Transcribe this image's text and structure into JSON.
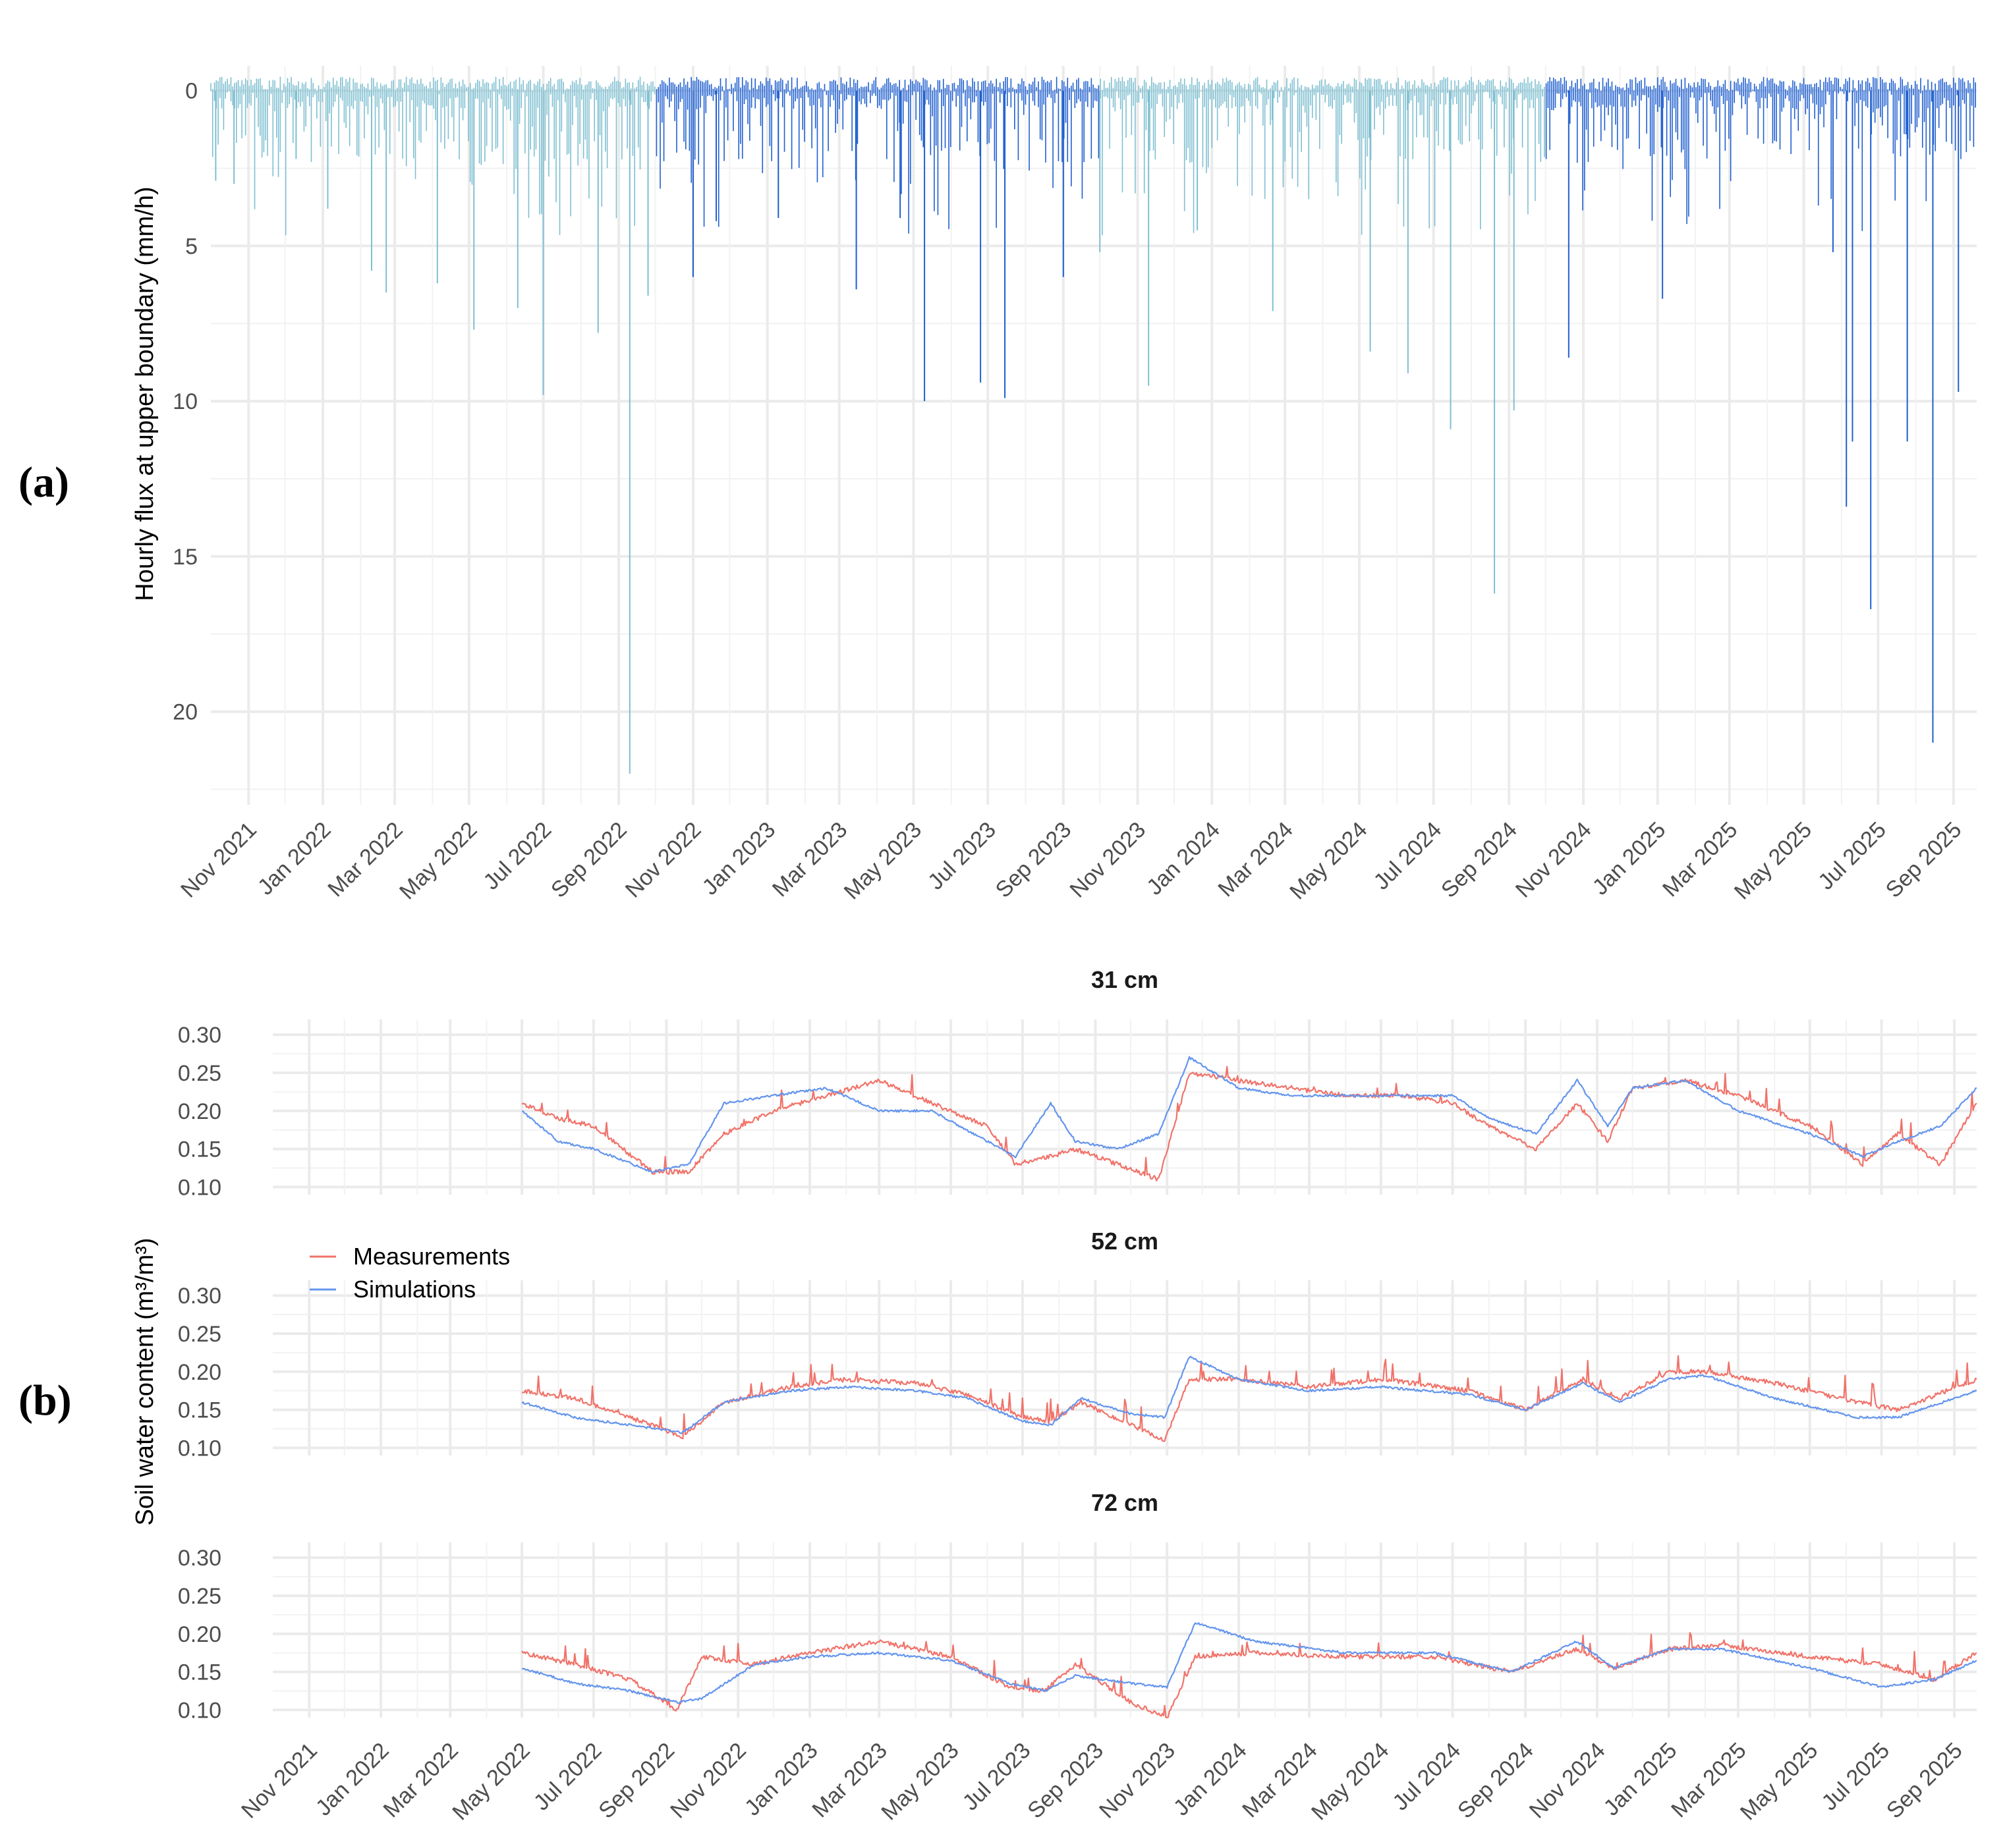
{
  "panel_labels": {
    "a": "(a)",
    "b": "(b)"
  },
  "colors": {
    "flux_light": "#7fbfd1",
    "flux_dark": "#1f5fcf",
    "measurements": "#f0736a",
    "simulations": "#6495ed",
    "grid": "#ebebeb"
  },
  "chart_data": [
    {
      "type": "bar",
      "ylabel": "Hourly flux at upper boundary (mm/h)",
      "y_reversed": true,
      "ylim": [
        -0.8,
        23
      ],
      "yticks": [
        "0",
        "5",
        "10",
        "15",
        "20"
      ],
      "xlim": [
        "2021-10-01",
        "2025-09-20"
      ],
      "xtick_labels": [
        "Nov 2021",
        "Jan 2022",
        "Mar 2022",
        "May 2022",
        "Jul 2022",
        "Sep 2022",
        "Nov 2022",
        "Jan 2023",
        "Mar 2023",
        "May 2023",
        "Jul 2023",
        "Sep 2023",
        "Nov 2023",
        "Jan 2024",
        "Mar 2024",
        "May 2024",
        "Jul 2024",
        "Sep 2024",
        "Nov 2024",
        "Jan 2025",
        "Mar 2025",
        "May 2025",
        "Jul 2025",
        "Sep 2025"
      ],
      "color_periods": [
        {
          "start": "2021-10-01",
          "end": "2022-10-01",
          "color": "light"
        },
        {
          "start": "2022-10-01",
          "end": "2023-10-01",
          "color": "dark"
        },
        {
          "start": "2023-10-01",
          "end": "2024-10-01",
          "color": "light"
        },
        {
          "start": "2024-10-01",
          "end": "2025-09-20",
          "color": "dark"
        }
      ],
      "peaks": [
        {
          "date": "2021-10-05",
          "value": 2.9
        },
        {
          "date": "2021-10-20",
          "value": 3.0
        },
        {
          "date": "2021-12-10",
          "value": 2.2
        },
        {
          "date": "2022-01-05",
          "value": 3.8
        },
        {
          "date": "2022-02-10",
          "value": 5.8
        },
        {
          "date": "2022-02-22",
          "value": 6.5
        },
        {
          "date": "2022-04-05",
          "value": 6.2
        },
        {
          "date": "2022-05-05",
          "value": 7.7
        },
        {
          "date": "2022-06-10",
          "value": 7.0
        },
        {
          "date": "2022-07-01",
          "value": 9.8
        },
        {
          "date": "2022-08-15",
          "value": 7.8
        },
        {
          "date": "2022-09-10",
          "value": 22.0
        },
        {
          "date": "2022-09-25",
          "value": 6.6
        },
        {
          "date": "2022-11-01",
          "value": 6.0
        },
        {
          "date": "2022-11-20",
          "value": 4.2
        },
        {
          "date": "2023-01-10",
          "value": 4.1
        },
        {
          "date": "2023-03-15",
          "value": 6.4
        },
        {
          "date": "2023-04-20",
          "value": 4.1
        },
        {
          "date": "2023-05-10",
          "value": 10.0
        },
        {
          "date": "2023-06-25",
          "value": 9.4
        },
        {
          "date": "2023-07-15",
          "value": 9.9
        },
        {
          "date": "2023-09-01",
          "value": 6.0
        },
        {
          "date": "2023-10-01",
          "value": 5.2
        },
        {
          "date": "2023-11-10",
          "value": 9.5
        },
        {
          "date": "2023-12-20",
          "value": 4.5
        },
        {
          "date": "2024-02-20",
          "value": 7.1
        },
        {
          "date": "2024-05-10",
          "value": 8.4
        },
        {
          "date": "2024-06-10",
          "value": 9.1
        },
        {
          "date": "2024-07-15",
          "value": 10.9
        },
        {
          "date": "2024-08-20",
          "value": 16.2
        },
        {
          "date": "2024-09-05",
          "value": 10.3
        },
        {
          "date": "2024-10-20",
          "value": 8.6
        },
        {
          "date": "2025-01-05",
          "value": 6.7
        },
        {
          "date": "2025-05-25",
          "value": 5.2
        },
        {
          "date": "2025-06-05",
          "value": 13.4
        },
        {
          "date": "2025-06-10",
          "value": 11.3
        },
        {
          "date": "2025-06-25",
          "value": 16.7
        },
        {
          "date": "2025-07-25",
          "value": 11.3
        },
        {
          "date": "2025-08-15",
          "value": 21.0
        },
        {
          "date": "2025-09-05",
          "value": 9.7
        }
      ]
    },
    {
      "type": "line",
      "ylabel": "Soil water content (m³/m³)",
      "ylim": [
        0.09,
        0.32
      ],
      "yticks": [
        "0.10",
        "0.15",
        "0.20",
        "0.25",
        "0.30"
      ],
      "xlim": [
        "2021-10-01",
        "2025-09-20"
      ],
      "xtick_labels": [
        "Nov 2021",
        "Jan 2022",
        "Mar 2022",
        "May 2022",
        "Jul 2022",
        "Sep 2022",
        "Nov 2022",
        "Jan 2023",
        "Mar 2023",
        "May 2023",
        "Jul 2023",
        "Sep 2023",
        "Nov 2023",
        "Jan 2024",
        "Mar 2024",
        "May 2024",
        "Jul 2024",
        "Sep 2024",
        "Nov 2024",
        "Jan 2025",
        "Mar 2025",
        "May 2025",
        "Jul 2025",
        "Sep 2025"
      ],
      "legend": {
        "position": "left-inside",
        "items": [
          "Measurements",
          "Simulations"
        ]
      },
      "facets": [
        {
          "title": "31 cm",
          "series": [
            {
              "name": "Measurements",
              "color": "measurements",
              "x": [
                "2022-05-01",
                "2022-06-01",
                "2022-07-01",
                "2022-08-20",
                "2022-09-20",
                "2022-10-20",
                "2022-12-01",
                "2023-01-15",
                "2023-03-01",
                "2023-04-15",
                "2023-06-01",
                "2023-06-25",
                "2023-07-25",
                "2023-08-15",
                "2023-09-20",
                "2023-10-25",
                "2023-11-20",
                "2024-01-01",
                "2024-02-15",
                "2024-04-01",
                "2024-05-20",
                "2024-07-01",
                "2024-08-01",
                "2024-09-10",
                "2024-10-15",
                "2024-11-10",
                "2024-12-01",
                "2025-01-15",
                "2025-03-01",
                "2025-05-01",
                "2025-06-15",
                "2025-07-15",
                "2025-08-20",
                "2025-09-20"
              ],
              "y": [
                0.21,
                0.19,
                0.18,
                0.12,
                0.12,
                0.17,
                0.2,
                0.22,
                0.24,
                0.21,
                0.18,
                0.13,
                0.14,
                0.15,
                0.13,
                0.11,
                0.25,
                0.24,
                0.23,
                0.22,
                0.22,
                0.21,
                0.18,
                0.15,
                0.21,
                0.16,
                0.23,
                0.24,
                0.22,
                0.18,
                0.13,
                0.17,
                0.13,
                0.21
              ]
            },
            {
              "name": "Simulations",
              "color": "simulations",
              "x": [
                "2022-05-01",
                "2022-06-01",
                "2022-07-01",
                "2022-08-20",
                "2022-09-20",
                "2022-10-20",
                "2022-12-01",
                "2023-01-15",
                "2023-03-01",
                "2023-04-15",
                "2023-06-01",
                "2023-06-25",
                "2023-07-25",
                "2023-08-15",
                "2023-09-20",
                "2023-10-25",
                "2023-11-20",
                "2024-01-01",
                "2024-02-15",
                "2024-04-01",
                "2024-05-20",
                "2024-07-01",
                "2024-08-01",
                "2024-09-10",
                "2024-10-15",
                "2024-11-10",
                "2024-12-01",
                "2025-01-15",
                "2025-03-01",
                "2025-05-01",
                "2025-06-15",
                "2025-07-15",
                "2025-08-20",
                "2025-09-20"
              ],
              "y": [
                0.2,
                0.16,
                0.15,
                0.12,
                0.13,
                0.21,
                0.22,
                0.23,
                0.2,
                0.2,
                0.16,
                0.14,
                0.21,
                0.16,
                0.15,
                0.17,
                0.27,
                0.23,
                0.22,
                0.22,
                0.22,
                0.22,
                0.19,
                0.17,
                0.24,
                0.18,
                0.23,
                0.24,
                0.2,
                0.17,
                0.14,
                0.16,
                0.18,
                0.23
              ]
            }
          ]
        },
        {
          "title": "52 cm",
          "series": [
            {
              "name": "Measurements",
              "color": "measurements",
              "x": [
                "2022-05-01",
                "2022-06-15",
                "2022-08-01",
                "2022-09-15",
                "2022-10-20",
                "2022-12-15",
                "2023-02-01",
                "2023-04-01",
                "2023-05-15",
                "2023-07-01",
                "2023-07-25",
                "2023-08-20",
                "2023-10-01",
                "2023-10-30",
                "2023-11-20",
                "2024-01-01",
                "2024-03-01",
                "2024-05-01",
                "2024-07-15",
                "2024-09-01",
                "2024-10-20",
                "2024-11-20",
                "2025-01-01",
                "2025-02-01",
                "2025-04-01",
                "2025-06-10",
                "2025-07-15",
                "2025-09-20"
              ],
              "y": [
                0.175,
                0.165,
                0.14,
                0.115,
                0.16,
                0.18,
                0.19,
                0.185,
                0.17,
                0.14,
                0.135,
                0.16,
                0.13,
                0.11,
                0.19,
                0.19,
                0.18,
                0.19,
                0.175,
                0.15,
                0.19,
                0.165,
                0.2,
                0.2,
                0.185,
                0.16,
                0.15,
                0.19
              ]
            },
            {
              "name": "Simulations",
              "color": "simulations",
              "x": [
                "2022-05-01",
                "2022-06-15",
                "2022-08-01",
                "2022-09-15",
                "2022-10-20",
                "2022-12-15",
                "2023-02-01",
                "2023-04-01",
                "2023-05-15",
                "2023-07-01",
                "2023-07-25",
                "2023-08-20",
                "2023-10-01",
                "2023-10-30",
                "2023-11-20",
                "2024-01-01",
                "2024-03-01",
                "2024-05-01",
                "2024-07-15",
                "2024-09-01",
                "2024-10-20",
                "2024-11-20",
                "2025-01-01",
                "2025-02-01",
                "2025-04-01",
                "2025-06-10",
                "2025-07-15",
                "2025-09-20"
              ],
              "y": [
                0.16,
                0.14,
                0.13,
                0.12,
                0.16,
                0.175,
                0.18,
                0.175,
                0.165,
                0.135,
                0.13,
                0.165,
                0.145,
                0.14,
                0.22,
                0.19,
                0.175,
                0.18,
                0.17,
                0.15,
                0.185,
                0.16,
                0.19,
                0.195,
                0.165,
                0.14,
                0.14,
                0.175
              ]
            }
          ]
        },
        {
          "title": "72 cm",
          "series": [
            {
              "name": "Measurements",
              "color": "measurements",
              "x": [
                "2022-05-01",
                "2022-06-15",
                "2022-08-01",
                "2022-09-10",
                "2022-10-01",
                "2022-11-15",
                "2023-01-01",
                "2023-03-01",
                "2023-05-01",
                "2023-06-20",
                "2023-07-20",
                "2023-08-15",
                "2023-10-01",
                "2023-11-01",
                "2023-11-25",
                "2024-01-15",
                "2024-04-01",
                "2024-06-15",
                "2024-08-20",
                "2024-10-15",
                "2024-11-15",
                "2025-01-01",
                "2025-02-15",
                "2025-05-01",
                "2025-07-01",
                "2025-08-15",
                "2025-09-20"
              ],
              "y": [
                0.175,
                0.16,
                0.14,
                0.1,
                0.17,
                0.16,
                0.175,
                0.19,
                0.17,
                0.13,
                0.125,
                0.16,
                0.11,
                0.09,
                0.17,
                0.175,
                0.17,
                0.17,
                0.15,
                0.18,
                0.155,
                0.18,
                0.185,
                0.17,
                0.16,
                0.14,
                0.175
              ]
            },
            {
              "name": "Simulations",
              "color": "simulations",
              "x": [
                "2022-05-01",
                "2022-06-15",
                "2022-08-01",
                "2022-09-10",
                "2022-10-01",
                "2022-11-15",
                "2023-01-01",
                "2023-03-01",
                "2023-05-01",
                "2023-06-20",
                "2023-07-20",
                "2023-08-15",
                "2023-10-01",
                "2023-11-01",
                "2023-11-25",
                "2024-01-15",
                "2024-04-01",
                "2024-06-15",
                "2024-08-20",
                "2024-10-15",
                "2024-11-15",
                "2025-01-01",
                "2025-02-15",
                "2025-05-01",
                "2025-07-01",
                "2025-08-15",
                "2025-09-20"
              ],
              "y": [
                0.155,
                0.135,
                0.125,
                0.11,
                0.115,
                0.16,
                0.17,
                0.175,
                0.165,
                0.135,
                0.125,
                0.145,
                0.135,
                0.13,
                0.215,
                0.19,
                0.175,
                0.175,
                0.15,
                0.19,
                0.155,
                0.18,
                0.18,
                0.155,
                0.13,
                0.14,
                0.165
              ]
            }
          ]
        }
      ]
    }
  ]
}
